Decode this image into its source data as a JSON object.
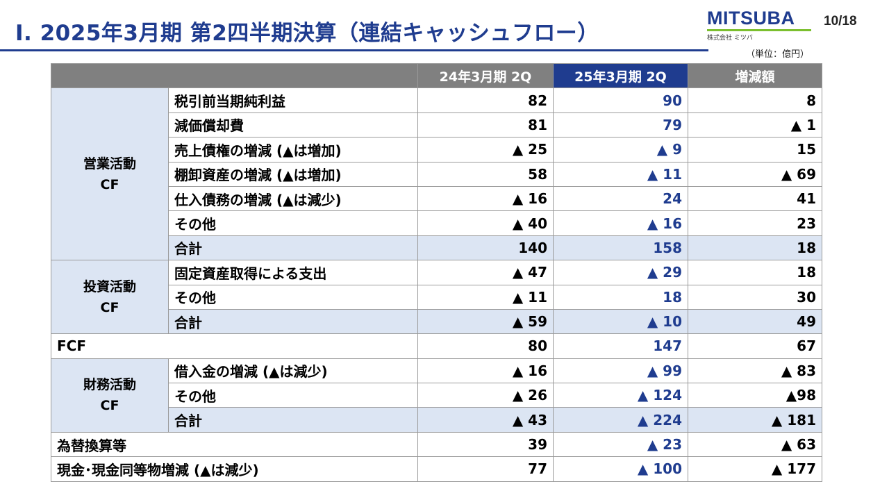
{
  "header": {
    "title": "Ⅰ. 2025年3月期 第2四半期決算（連結キャッシュフロー）",
    "logo_text": "MITSUBA",
    "logo_sub": "株式会社 ミツバ",
    "page": "10/18",
    "unit": "（単位：億円）"
  },
  "table": {
    "columns": [
      "24年3月期 2Q",
      "25年3月期 2Q",
      "増減額"
    ],
    "sections": {
      "operating": "営業活動\nCF",
      "investing": "投資活動\nCF",
      "financing": "財務活動\nCF"
    },
    "rows": [
      {
        "label": "税引前当期純利益",
        "prev": "82",
        "cur": "90",
        "diff": "8"
      },
      {
        "label": "減価償却費",
        "prev": "81",
        "cur": "79",
        "diff": "▲ 1"
      },
      {
        "label": "売上債権の増減 (▲は増加)",
        "prev": "▲ 25",
        "cur": "▲ 9",
        "diff": "15"
      },
      {
        "label": "棚卸資産の増減 (▲は増加)",
        "prev": "58",
        "cur": "▲ 11",
        "diff": "▲ 69"
      },
      {
        "label": "仕入債務の増減 (▲は減少)",
        "prev": "▲ 16",
        "cur": "24",
        "diff": "41"
      },
      {
        "label": "その他",
        "prev": "▲ 40",
        "cur": "▲ 16",
        "diff": "23"
      },
      {
        "label": "合計",
        "prev": "140",
        "cur": "158",
        "diff": "18"
      },
      {
        "label": "固定資産取得による支出",
        "prev": "▲ 47",
        "cur": "▲ 29",
        "diff": "18"
      },
      {
        "label": "その他",
        "prev": "▲ 11",
        "cur": "18",
        "diff": "30"
      },
      {
        "label": "合計",
        "prev": "▲ 59",
        "cur": "▲ 10",
        "diff": "49"
      },
      {
        "label": "FCF",
        "prev": "80",
        "cur": "147",
        "diff": "67"
      },
      {
        "label": "借入金の増減 (▲は減少)",
        "prev": "▲ 16",
        "cur": "▲ 99",
        "diff": "▲ 83"
      },
      {
        "label": "その他",
        "prev": "▲ 26",
        "cur": "▲ 124",
        "diff": "▲98"
      },
      {
        "label": "合計",
        "prev": "▲ 43",
        "cur": "▲ 224",
        "diff": "▲ 181"
      },
      {
        "label": "為替換算等",
        "prev": "39",
        "cur": "▲ 23",
        "diff": "▲ 63"
      },
      {
        "label": "現金･現金同等物増減 (▲は減少)",
        "prev": "77",
        "cur": "▲ 100",
        "diff": "▲ 177"
      }
    ]
  },
  "colors": {
    "accent": "#1f3c8f",
    "header_gray": "#808080",
    "subtotal_bg": "#dce5f3",
    "logo_green": "#7bbf2e"
  }
}
